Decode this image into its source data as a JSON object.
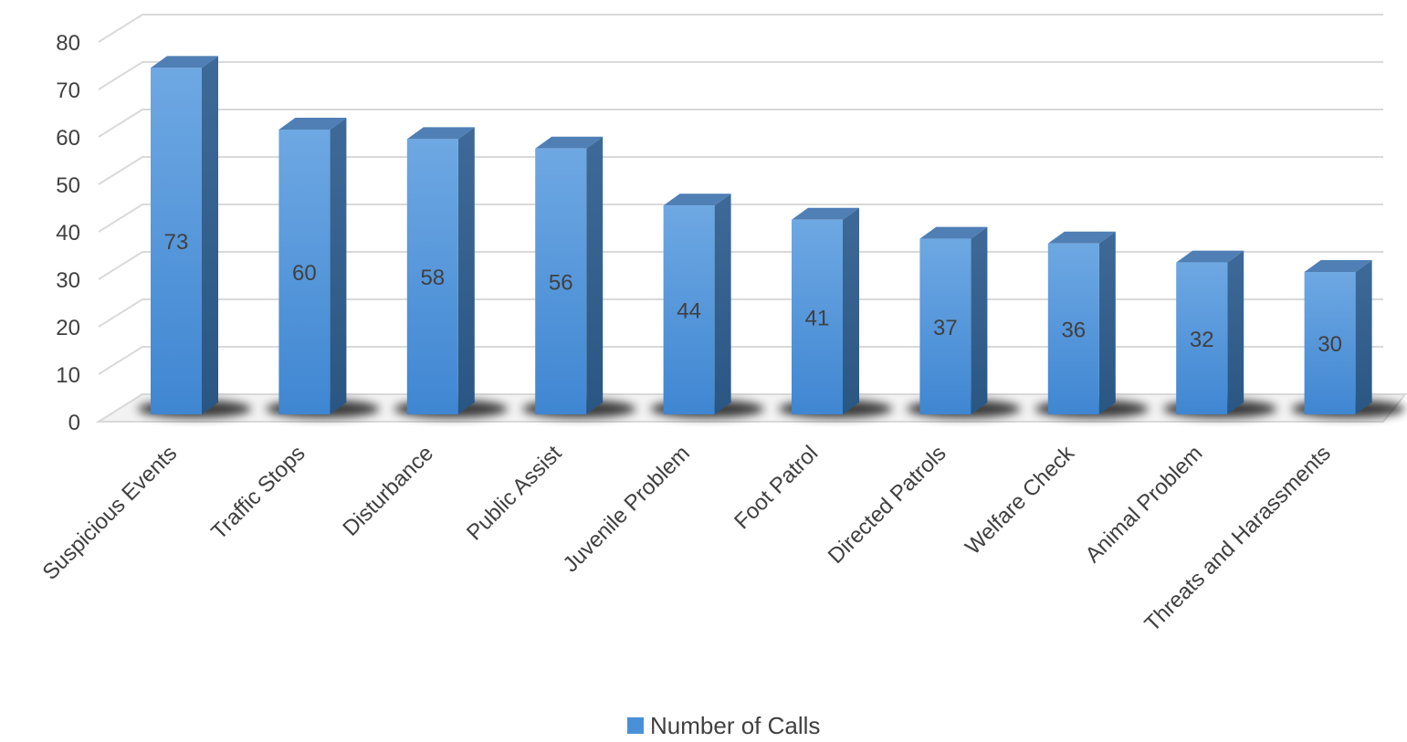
{
  "chart_data": {
    "type": "bar",
    "style": "3d-column",
    "categories": [
      "Suspicious Events",
      "Traffic Stops",
      "Disturbance",
      "Public Assist",
      "Juvenile Problem",
      "Foot Patrol",
      "Directed Patrols",
      "Welfare Check",
      "Animal Problem",
      "Threats and Harassments"
    ],
    "series": [
      {
        "name": "Number of Calls",
        "values": [
          73,
          60,
          58,
          56,
          44,
          41,
          37,
          36,
          32,
          30
        ],
        "color": "#4a90d9"
      }
    ],
    "ylim": [
      0,
      80
    ],
    "yticks": [
      "0",
      "10",
      "20",
      "30",
      "40",
      "50",
      "60",
      "70",
      "80"
    ],
    "grid": true,
    "legend_position": "bottom",
    "data_labels": true,
    "colors": {
      "bar_front": "#4a90d9",
      "bar_side": "#2f5f8f",
      "bar_top": "#4f7fb5",
      "grid": "#d9d9d9",
      "text": "#404040"
    }
  }
}
